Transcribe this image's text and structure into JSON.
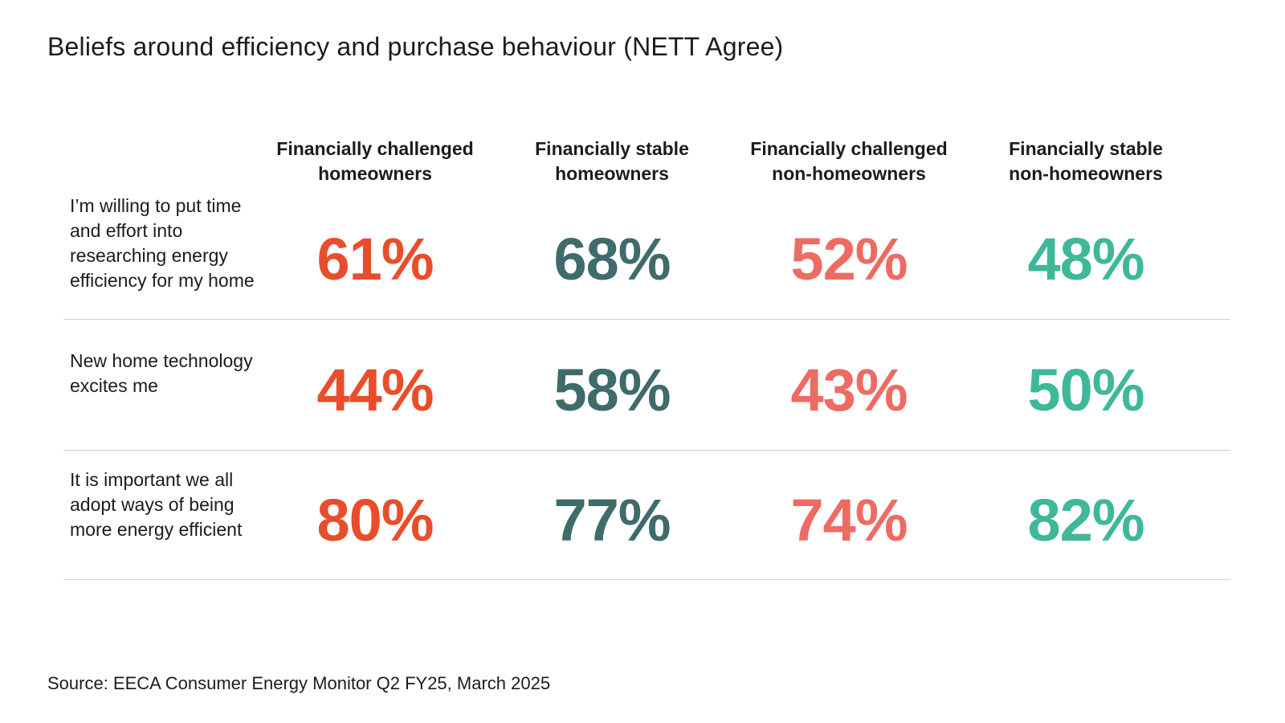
{
  "chart_data": {
    "type": "table",
    "title": "Beliefs around efficiency and purchase behaviour (NETT Agree)",
    "columns": [
      {
        "line1": "Financially challenged",
        "line2": "homeowners",
        "color": "#e84e2c"
      },
      {
        "line1": "Financially stable",
        "line2": "homeowners",
        "color": "#3f6b6b"
      },
      {
        "line1": "Financially challenged",
        "line2": "non-homeowners",
        "color": "#ee6b63"
      },
      {
        "line1": "Financially stable",
        "line2": "non-homeowners",
        "color": "#3fb89a"
      }
    ],
    "rows": [
      {
        "label": "I’m willing to put time and effort into researching energy efficiency for my home",
        "values": [
          "61%",
          "68%",
          "52%",
          "48%"
        ]
      },
      {
        "label": "New home technology excites me",
        "values": [
          "44%",
          "58%",
          "43%",
          "50%"
        ]
      },
      {
        "label": "It is important we all adopt ways of being more energy efficient",
        "values": [
          "80%",
          "77%",
          "74%",
          "82%"
        ]
      }
    ],
    "source": "Source: EECA Consumer Energy Monitor Q2 FY25, March 2025"
  }
}
